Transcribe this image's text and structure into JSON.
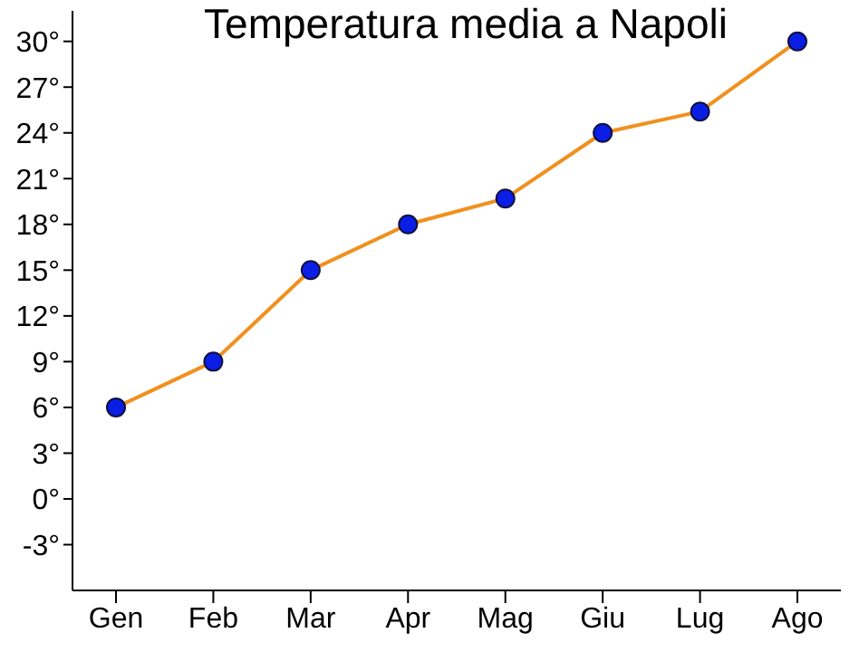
{
  "chart_data": {
    "type": "line",
    "title": "Temperatura media a Napoli",
    "categories": [
      "Gen",
      "Feb",
      "Mar",
      "Apr",
      "Mag",
      "Giu",
      "Lug",
      "Ago"
    ],
    "series": [
      {
        "color": "#f0901e",
        "values": [
          6,
          9,
          15,
          18,
          19.7,
          24,
          25.4,
          30
        ]
      }
    ],
    "ylim": [
      -6,
      32
    ],
    "yticks": [
      {
        "value": -3,
        "label": "-3°"
      },
      {
        "value": 0,
        "label": "0°"
      },
      {
        "value": 3,
        "label": "3°"
      },
      {
        "value": 6,
        "label": "6°"
      },
      {
        "value": 9,
        "label": "9°"
      },
      {
        "value": 12,
        "label": "12°"
      },
      {
        "value": 15,
        "label": "15°"
      },
      {
        "value": 18,
        "label": "18°"
      },
      {
        "value": 21,
        "label": "21°"
      },
      {
        "value": 24,
        "label": "24°"
      },
      {
        "value": 27,
        "label": "27°"
      },
      {
        "value": 30,
        "label": "30°"
      }
    ],
    "grid": false,
    "legend": false,
    "marker": "circle",
    "line_style": "solid"
  }
}
